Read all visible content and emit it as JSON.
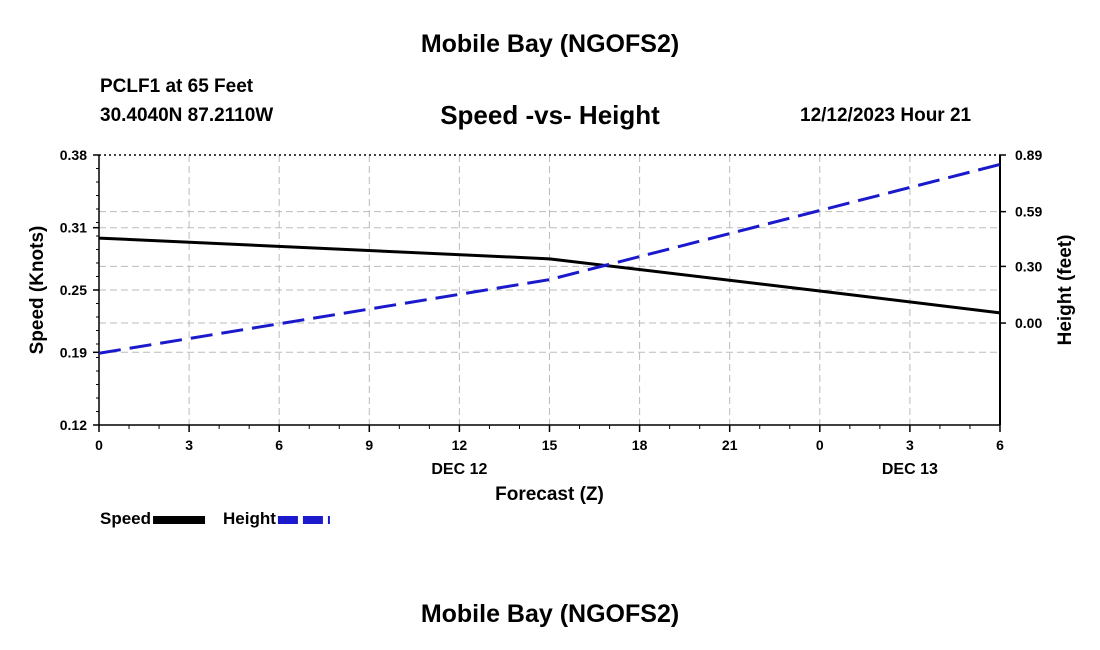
{
  "title": "Mobile Bay (NGOFS2)",
  "station": "PCLF1 at 65 Feet",
  "coords": "30.4040N  87.2110W",
  "subtitle": "Speed -vs- Height",
  "timestamp": "12/12/2023 Hour 21",
  "footer_title": "Mobile Bay (NGOFS2)",
  "chart_data": {
    "type": "line",
    "xlabel": "Forecast (Z)",
    "ylabel_left": "Speed (Knots)",
    "ylabel_right": "Height (feet)",
    "x_hours": [
      0,
      3,
      6,
      9,
      12,
      15,
      18,
      21,
      24,
      27,
      30
    ],
    "x_tick_labels": [
      "0",
      "3",
      "6",
      "9",
      "12",
      "15",
      "18",
      "21",
      "0",
      "3",
      "6"
    ],
    "date_labels": [
      {
        "x": 12,
        "label": "DEC 12"
      },
      {
        "x": 27,
        "label": "DEC 13"
      }
    ],
    "ylim_left": [
      0.12,
      0.38
    ],
    "yticks_left": [
      "0.12",
      "0.19",
      "0.25",
      "0.31",
      "0.38"
    ],
    "ylim_right": [
      -0.54,
      0.89
    ],
    "yticks_right": [
      "0.00",
      "0.30",
      "0.59",
      "0.89"
    ],
    "grid": true,
    "legend_position": "bottom-left",
    "series": [
      {
        "name": "Speed",
        "axis": "left",
        "color": "#000000",
        "dash": "solid",
        "x": [
          0,
          15,
          24,
          30
        ],
        "y": [
          0.3,
          0.28,
          0.249,
          0.228
        ]
      },
      {
        "name": "Height",
        "axis": "right",
        "color": "#1a1acc",
        "dash": "dashed",
        "x": [
          0,
          15,
          30
        ],
        "y": [
          -0.16,
          0.23,
          0.84
        ]
      }
    ]
  }
}
